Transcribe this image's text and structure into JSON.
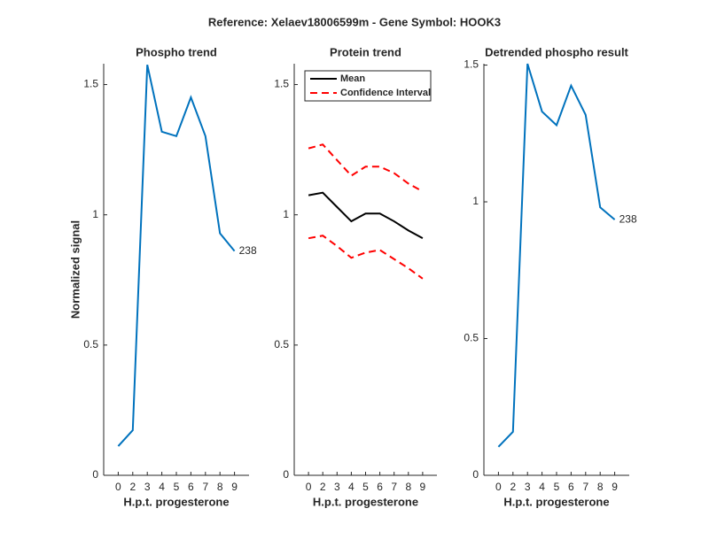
{
  "title": "Reference:  Xelaev18006599m - Gene Symbol:  HOOK3",
  "chart_data": [
    {
      "type": "line",
      "title": "Phospho trend",
      "x_label": "H.p.t. progesterone",
      "y_label": "Normalized signal",
      "categories": [
        "0",
        "2",
        "3",
        "4",
        "5",
        "6",
        "7",
        "8",
        "9"
      ],
      "series": [
        {
          "name": "Phospho",
          "color": "#0072bd",
          "values": [
            0.112,
            0.173,
            1.576,
            1.319,
            1.302,
            1.451,
            1.302,
            0.929,
            0.861
          ]
        }
      ],
      "annotation": "238",
      "ylim": [
        0,
        1.58
      ],
      "yticks": [
        0,
        0.5,
        1,
        1.5
      ]
    },
    {
      "type": "band",
      "title": "Protein trend",
      "x_label": "H.p.t. progesterone",
      "categories": [
        "0",
        "2",
        "3",
        "4",
        "5",
        "6",
        "7",
        "8",
        "9"
      ],
      "series": [
        {
          "name": "Mean",
          "color": "#000000",
          "values": [
            1.075,
            1.085,
            1.03,
            0.975,
            1.005,
            1.005,
            0.975,
            0.94,
            0.91
          ]
        },
        {
          "name": "Confidence Interval",
          "color": "#ff0000",
          "upper": [
            1.255,
            1.27,
            1.21,
            1.15,
            1.185,
            1.185,
            1.16,
            1.12,
            1.09
          ],
          "lower": [
            0.91,
            0.92,
            0.88,
            0.835,
            0.855,
            0.865,
            0.83,
            0.795,
            0.755
          ]
        }
      ],
      "legend": "top-left",
      "ylim": [
        0,
        1.58
      ],
      "yticks": [
        0,
        0.5,
        1,
        1.5
      ]
    },
    {
      "type": "line",
      "title": "Detrended phospho result",
      "x_label": "H.p.t. progesterone",
      "categories": [
        "0",
        "2",
        "3",
        "4",
        "5",
        "6",
        "7",
        "8",
        "9"
      ],
      "series": [
        {
          "name": "Detrended",
          "color": "#0072bd",
          "values": [
            0.104,
            0.159,
            1.505,
            1.33,
            1.28,
            1.425,
            1.318,
            0.98,
            0.935
          ]
        }
      ],
      "annotation": "238",
      "ylim": [
        0,
        1.505
      ],
      "yticks": [
        0,
        0.5,
        1,
        1.5
      ]
    }
  ]
}
